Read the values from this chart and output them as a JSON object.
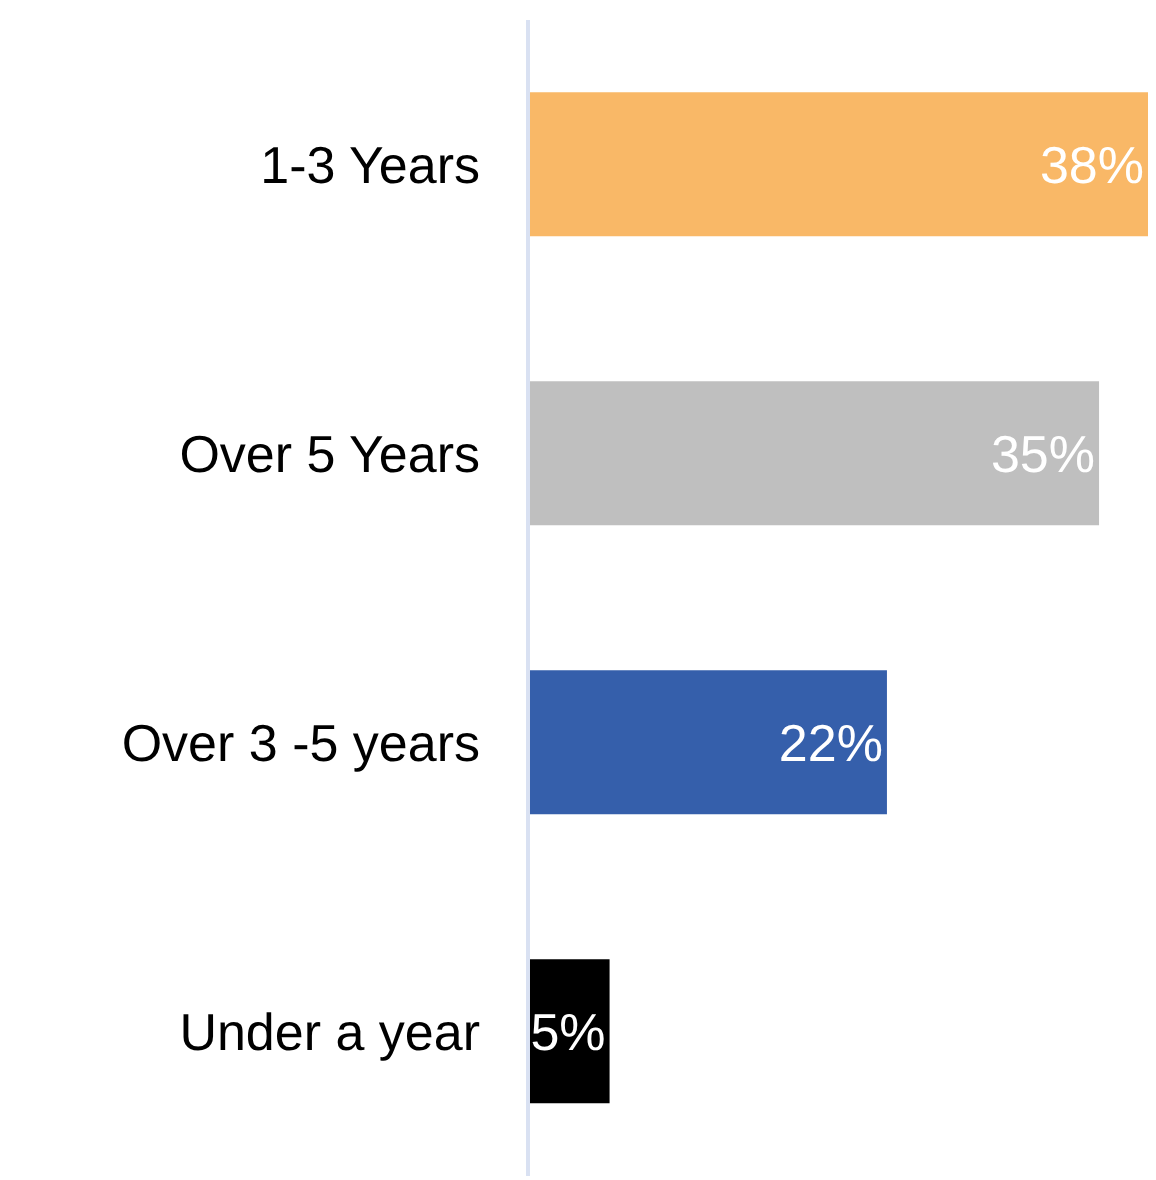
{
  "chart_data": {
    "type": "bar",
    "orientation": "horizontal",
    "categories": [
      "1-3 Years",
      "Over 5 Years",
      "Over 3 -5 years",
      "Under a year"
    ],
    "values": [
      38,
      35,
      22,
      5
    ],
    "colors": [
      "#f9b867",
      "#bfbfbf",
      "#355fab",
      "#000000"
    ],
    "value_labels": [
      "38%",
      "35%",
      "22%",
      "5%"
    ]
  }
}
